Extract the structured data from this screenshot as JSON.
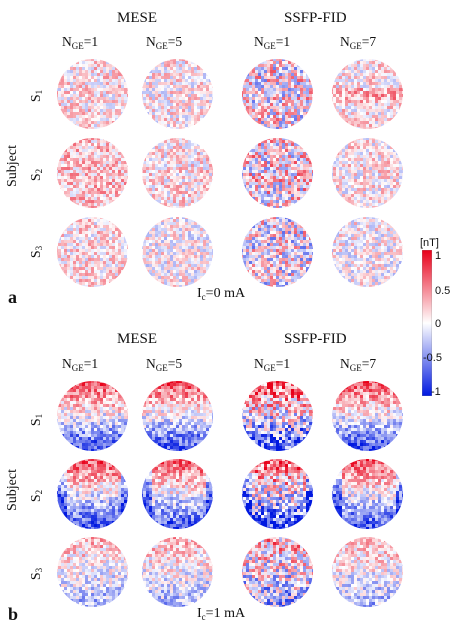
{
  "panels": [
    {
      "letter": "a",
      "current_label": "I",
      "current_sub": "c",
      "current_value": "=0 mA",
      "groups": [
        "MESE",
        "SSFP-FID"
      ],
      "columns": [
        {
          "prefix": "N",
          "sub": "GE",
          "value": "=1"
        },
        {
          "prefix": "N",
          "sub": "GE",
          "value": "=5"
        },
        {
          "prefix": "N",
          "sub": "GE",
          "value": "=1"
        },
        {
          "prefix": "N",
          "sub": "GE",
          "value": "=7"
        }
      ],
      "rows": [
        {
          "prefix": "S",
          "sub": "1"
        },
        {
          "prefix": "S",
          "sub": "2"
        },
        {
          "prefix": "S",
          "sub": "3"
        }
      ],
      "axis_label": "Subject"
    },
    {
      "letter": "b",
      "current_label": "I",
      "current_sub": "c",
      "current_value": "=1 mA",
      "groups": [
        "MESE",
        "SSFP-FID"
      ],
      "columns": [
        {
          "prefix": "N",
          "sub": "GE",
          "value": "=1"
        },
        {
          "prefix": "N",
          "sub": "GE",
          "value": "=5"
        },
        {
          "prefix": "N",
          "sub": "GE",
          "value": "=1"
        },
        {
          "prefix": "N",
          "sub": "GE",
          "value": "=7"
        }
      ],
      "rows": [
        {
          "prefix": "S",
          "sub": "1"
        },
        {
          "prefix": "S",
          "sub": "2"
        },
        {
          "prefix": "S",
          "sub": "3"
        }
      ],
      "axis_label": "Subject"
    }
  ],
  "colorbar": {
    "unit": "[nT]",
    "ticks": [
      "1",
      "0.5",
      "0",
      "-0.5",
      "-1"
    ],
    "colors": {
      "max": "#e8001a",
      "mid": "#ffffff",
      "min": "#0018e0"
    }
  }
}
